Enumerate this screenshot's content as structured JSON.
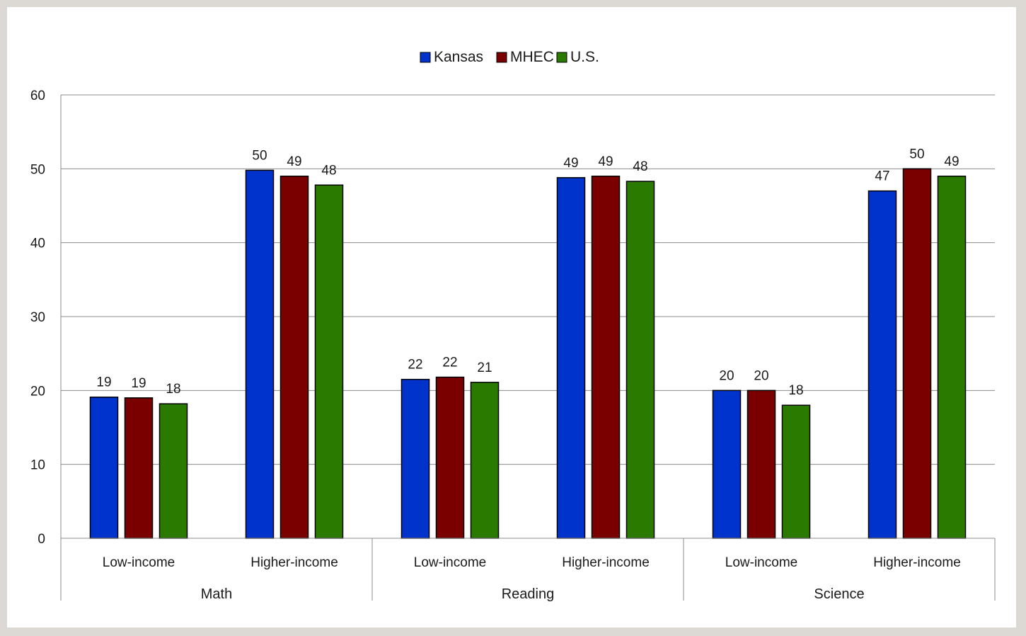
{
  "chart_data": {
    "type": "bar",
    "title": "",
    "xlabel": "",
    "ylabel": "",
    "ylim": [
      0,
      60
    ],
    "yticks": [
      0,
      10,
      20,
      30,
      40,
      50,
      60
    ],
    "grid": true,
    "legend_position": "top-center",
    "groups": [
      {
        "label": "Math",
        "categories": [
          "Low-income",
          "Higher-income"
        ]
      },
      {
        "label": "Reading",
        "categories": [
          "Low-income",
          "Higher-income"
        ]
      },
      {
        "label": "Science",
        "categories": [
          "Low-income",
          "Higher-income"
        ]
      }
    ],
    "series": [
      {
        "name": "Kansas",
        "color": "#0033cc",
        "values": [
          19.1,
          49.8,
          21.5,
          48.8,
          20,
          47
        ],
        "labels": [
          "19",
          "50",
          "22",
          "49",
          "20",
          "47"
        ]
      },
      {
        "name": "MHEC",
        "color": "#7a0000",
        "values": [
          19,
          49,
          21.8,
          49,
          20,
          50
        ],
        "labels": [
          "19",
          "49",
          "22",
          "49",
          "20",
          "50"
        ]
      },
      {
        "name": "U.S.",
        "color": "#2a7a00",
        "values": [
          18.2,
          47.8,
          21.1,
          48.3,
          18,
          49
        ],
        "labels": [
          "18",
          "48",
          "21",
          "48",
          "18",
          "49"
        ]
      }
    ]
  }
}
